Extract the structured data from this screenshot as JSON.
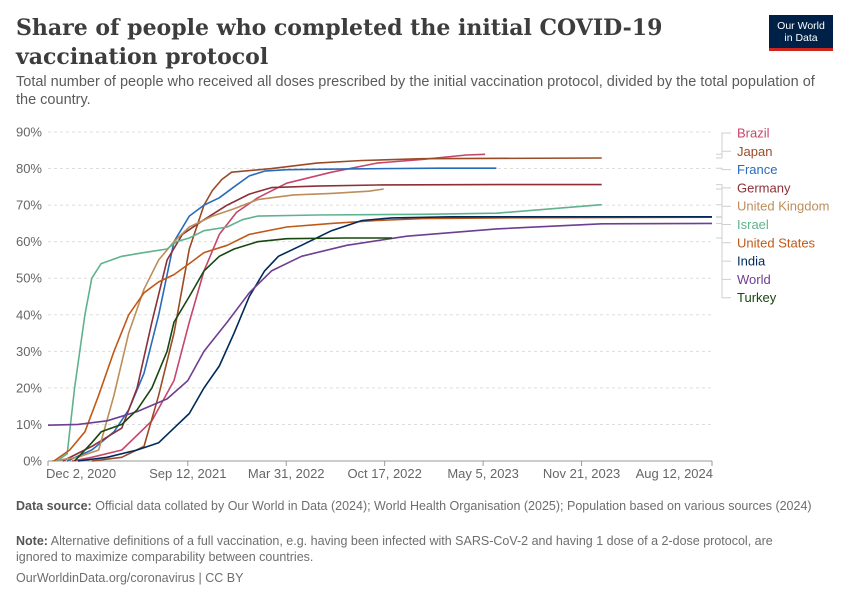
{
  "header": {
    "title": "Share of people who completed the initial COVID-19 vaccination protocol",
    "subtitle": "Total number of people who received all doses prescribed by the initial vaccination protocol, divided by the total population of the country."
  },
  "logo": {
    "line1": "Our World",
    "line2": "in Data",
    "background": "#002147",
    "accent": "#ce261e"
  },
  "footer": {
    "source_label": "Data source:",
    "source_text": "Official data collated by Our World in Data (2024); World Health Organisation (2025); Population based on various sources (2024)",
    "note_label": "Note:",
    "note_text": "Alternative definitions of a full vaccination, e.g. having been infected with SARS-CoV-2 and having 1 dose of a 2-dose protocol, are ignored to maximize comparability between countries.",
    "url": "OurWorldinData.org/coronavirus",
    "separator": "|",
    "license": "CC BY"
  },
  "chart_data": {
    "type": "line",
    "title": "",
    "xlabel": "",
    "ylabel": "",
    "x_ticks": [
      "Dec 2, 2020",
      "Sep 12, 2021",
      "Mar 31, 2022",
      "Oct 17, 2022",
      "May 5, 2023",
      "Nov 21, 2023",
      "Aug 12, 2024"
    ],
    "x_range": [
      "2020-12-02",
      "2024-08-12"
    ],
    "y_ticks": [
      "0%",
      "10%",
      "20%",
      "30%",
      "40%",
      "50%",
      "60%",
      "70%",
      "80%",
      "90%"
    ],
    "ylim": [
      0,
      90
    ],
    "grid": "horizontal dashed",
    "legend": "right, inline labels",
    "series": [
      {
        "name": "Brazil",
        "color": "#c6466b",
        "points": [
          [
            "2021-01-20",
            0
          ],
          [
            "2021-03-01",
            1
          ],
          [
            "2021-05-01",
            3
          ],
          [
            "2021-07-01",
            11
          ],
          [
            "2021-08-15",
            22
          ],
          [
            "2021-09-15",
            38
          ],
          [
            "2021-10-15",
            52
          ],
          [
            "2021-11-15",
            62
          ],
          [
            "2021-12-20",
            68
          ],
          [
            "2022-02-01",
            72
          ],
          [
            "2022-04-01",
            76
          ],
          [
            "2022-07-01",
            79
          ],
          [
            "2022-10-01",
            81.5
          ],
          [
            "2023-01-01",
            82.5
          ],
          [
            "2023-04-01",
            83.7
          ],
          [
            "2023-05-09",
            83.9
          ]
        ]
      },
      {
        "name": "Japan",
        "color": "#9a4b26",
        "points": [
          [
            "2021-03-01",
            0
          ],
          [
            "2021-05-01",
            1
          ],
          [
            "2021-06-15",
            4
          ],
          [
            "2021-07-15",
            18
          ],
          [
            "2021-08-15",
            35
          ],
          [
            "2021-09-15",
            58
          ],
          [
            "2021-10-15",
            70
          ],
          [
            "2021-11-01",
            74
          ],
          [
            "2021-11-20",
            77
          ],
          [
            "2021-12-10",
            79
          ],
          [
            "2022-03-01",
            80
          ],
          [
            "2022-06-01",
            81.5
          ],
          [
            "2022-09-01",
            82.2
          ],
          [
            "2023-01-01",
            82.7
          ],
          [
            "2024-01-01",
            82.9
          ]
        ]
      },
      {
        "name": "France",
        "color": "#286bbb",
        "points": [
          [
            "2021-01-10",
            0
          ],
          [
            "2021-03-01",
            3
          ],
          [
            "2021-04-15",
            8
          ],
          [
            "2021-05-15",
            14
          ],
          [
            "2021-06-15",
            24
          ],
          [
            "2021-07-15",
            40
          ],
          [
            "2021-08-15",
            60
          ],
          [
            "2021-09-15",
            67
          ],
          [
            "2021-10-15",
            70
          ],
          [
            "2021-11-15",
            72
          ],
          [
            "2021-12-15",
            75
          ],
          [
            "2022-01-15",
            78
          ],
          [
            "2022-02-15",
            79.3
          ],
          [
            "2022-04-01",
            79.7
          ],
          [
            "2022-08-01",
            79.9
          ],
          [
            "2023-02-01",
            80.1
          ],
          [
            "2023-06-01",
            80.1
          ]
        ]
      },
      {
        "name": "Germany",
        "color": "#8c3036",
        "points": [
          [
            "2021-01-01",
            0
          ],
          [
            "2021-03-01",
            4
          ],
          [
            "2021-05-01",
            9
          ],
          [
            "2021-06-01",
            20
          ],
          [
            "2021-07-01",
            38
          ],
          [
            "2021-08-01",
            55
          ],
          [
            "2021-09-01",
            62
          ],
          [
            "2021-10-15",
            66
          ],
          [
            "2021-12-01",
            70
          ],
          [
            "2022-01-15",
            73
          ],
          [
            "2022-03-01",
            74.8
          ],
          [
            "2022-06-01",
            75.2
          ],
          [
            "2022-10-01",
            75.5
          ],
          [
            "2023-06-01",
            75.6
          ],
          [
            "2024-01-01",
            75.6
          ]
        ]
      },
      {
        "name": "United Kingdom",
        "color": "#bc8e5a",
        "points": [
          [
            "2020-12-10",
            0
          ],
          [
            "2021-02-01",
            1
          ],
          [
            "2021-03-15",
            3
          ],
          [
            "2021-04-15",
            18
          ],
          [
            "2021-05-15",
            35
          ],
          [
            "2021-06-15",
            47
          ],
          [
            "2021-07-15",
            55
          ],
          [
            "2021-08-15",
            60
          ],
          [
            "2021-09-15",
            64
          ],
          [
            "2021-11-01",
            67
          ],
          [
            "2021-12-15",
            69
          ],
          [
            "2022-02-01",
            71.5
          ],
          [
            "2022-04-15",
            72.8
          ],
          [
            "2022-07-01",
            73.2
          ],
          [
            "2022-09-15",
            73.8
          ],
          [
            "2022-10-15",
            74.4
          ]
        ]
      },
      {
        "name": "Israel",
        "color": "#5fb28e",
        "points": [
          [
            "2020-12-20",
            0
          ],
          [
            "2021-01-10",
            2
          ],
          [
            "2021-01-25",
            20
          ],
          [
            "2021-02-15",
            40
          ],
          [
            "2021-03-01",
            50
          ],
          [
            "2021-03-20",
            54
          ],
          [
            "2021-05-01",
            56
          ],
          [
            "2021-06-15",
            57
          ],
          [
            "2021-08-01",
            58
          ],
          [
            "2021-08-20",
            60
          ],
          [
            "2021-09-15",
            61
          ],
          [
            "2021-10-15",
            63
          ],
          [
            "2021-12-01",
            64
          ],
          [
            "2022-01-01",
            66
          ],
          [
            "2022-02-01",
            67
          ],
          [
            "2022-06-01",
            67.3
          ],
          [
            "2023-01-01",
            67.5
          ],
          [
            "2023-06-01",
            67.8
          ],
          [
            "2024-01-01",
            70.1
          ]
        ]
      },
      {
        "name": "United States",
        "color": "#c05917",
        "points": [
          [
            "2020-12-14",
            0
          ],
          [
            "2021-01-15",
            3
          ],
          [
            "2021-02-15",
            8
          ],
          [
            "2021-03-15",
            18
          ],
          [
            "2021-04-15",
            30
          ],
          [
            "2021-05-15",
            40
          ],
          [
            "2021-06-15",
            46
          ],
          [
            "2021-07-15",
            49
          ],
          [
            "2021-08-15",
            51
          ],
          [
            "2021-09-15",
            54
          ],
          [
            "2021-10-15",
            57
          ],
          [
            "2021-12-01",
            59
          ],
          [
            "2022-01-15",
            62
          ],
          [
            "2022-04-01",
            64
          ],
          [
            "2022-07-01",
            65
          ],
          [
            "2022-10-01",
            65.8
          ],
          [
            "2023-01-01",
            66.3
          ],
          [
            "2023-06-01",
            66.5
          ],
          [
            "2024-08-12",
            66.7
          ]
        ]
      },
      {
        "name": "India",
        "color": "#00295b",
        "points": [
          [
            "2021-02-01",
            0
          ],
          [
            "2021-04-01",
            1
          ],
          [
            "2021-06-01",
            3
          ],
          [
            "2021-07-15",
            5
          ],
          [
            "2021-08-15",
            9
          ],
          [
            "2021-09-15",
            13
          ],
          [
            "2021-10-15",
            20
          ],
          [
            "2021-11-15",
            26
          ],
          [
            "2021-12-15",
            35
          ],
          [
            "2022-01-15",
            45
          ],
          [
            "2022-02-15",
            52
          ],
          [
            "2022-03-15",
            56
          ],
          [
            "2022-05-01",
            59
          ],
          [
            "2022-07-01",
            63
          ],
          [
            "2022-09-01",
            65.8
          ],
          [
            "2022-11-01",
            66.5
          ],
          [
            "2023-03-01",
            66.8
          ],
          [
            "2024-08-12",
            66.8
          ]
        ]
      },
      {
        "name": "World",
        "color": "#6d3e91",
        "points": [
          [
            "2020-12-02",
            9.8
          ],
          [
            "2021-02-01",
            10
          ],
          [
            "2021-04-01",
            11
          ],
          [
            "2021-06-01",
            13.5
          ],
          [
            "2021-08-01",
            17
          ],
          [
            "2021-09-12",
            22
          ],
          [
            "2021-10-15",
            30
          ],
          [
            "2021-12-01",
            38
          ],
          [
            "2022-01-15",
            46
          ],
          [
            "2022-03-01",
            52
          ],
          [
            "2022-05-01",
            56
          ],
          [
            "2022-08-01",
            59
          ],
          [
            "2022-12-01",
            61.5
          ],
          [
            "2023-06-01",
            63.5
          ],
          [
            "2024-01-01",
            64.9
          ],
          [
            "2024-08-12",
            65
          ]
        ]
      },
      {
        "name": "Turkey",
        "color": "#18470f",
        "points": [
          [
            "2021-01-25",
            0
          ],
          [
            "2021-03-01",
            5
          ],
          [
            "2021-03-20",
            8
          ],
          [
            "2021-05-01",
            10
          ],
          [
            "2021-06-01",
            14
          ],
          [
            "2021-07-01",
            20
          ],
          [
            "2021-08-01",
            30
          ],
          [
            "2021-08-15",
            38
          ],
          [
            "2021-09-15",
            45
          ],
          [
            "2021-10-15",
            52
          ],
          [
            "2021-11-15",
            56
          ],
          [
            "2021-12-15",
            58
          ],
          [
            "2022-02-01",
            60
          ],
          [
            "2022-04-01",
            60.8
          ],
          [
            "2022-08-01",
            61
          ],
          [
            "2022-11-01",
            61
          ]
        ]
      }
    ]
  }
}
